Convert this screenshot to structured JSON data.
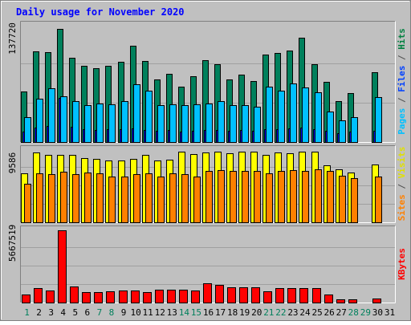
{
  "chart_data": {
    "type": "bar",
    "title": "Daily usage for November 2020",
    "days": [
      "1",
      "2",
      "3",
      "4",
      "5",
      "6",
      "7",
      "8",
      "9",
      "10",
      "11",
      "12",
      "13",
      "14",
      "15",
      "16",
      "17",
      "18",
      "19",
      "20",
      "21",
      "22",
      "23",
      "24",
      "25",
      "26",
      "27",
      "28",
      "29",
      "30",
      "31"
    ],
    "weekend_days": [
      "1",
      "7",
      "8",
      "14",
      "15",
      "21",
      "22",
      "28",
      "29"
    ],
    "panels": [
      {
        "id": "hits",
        "max_label": "137720",
        "max": 137720,
        "right_label": [
          {
            "text": "Pages",
            "color": "#00c0ff"
          },
          {
            "text": " / ",
            "color": "#505050"
          },
          {
            "text": "Files",
            "color": "#0040ff"
          },
          {
            "text": " / ",
            "color": "#505050"
          },
          {
            "text": "Hits",
            "color": "#008040"
          }
        ],
        "series": [
          {
            "name": "Hits",
            "color": "#00805c",
            "values": [
              60000,
              107000,
              106000,
              134000,
              100000,
              90000,
              87000,
              90000,
              95000,
              114000,
              96000,
              74000,
              81000,
              66000,
              78000,
              97000,
              92000,
              74000,
              80000,
              72000,
              104000,
              105000,
              108000,
              123000,
              92000,
              71000,
              48000,
              58000,
              0,
              83000,
              0
            ]
          },
          {
            "name": "Files",
            "color": "#0000ff",
            "values": [
              12000,
              17000,
              19000,
              52000,
              18000,
              15000,
              14000,
              15000,
              15000,
              16000,
              14000,
              13000,
              14000,
              12000,
              13000,
              14000,
              14000,
              13000,
              14000,
              13000,
              15000,
              15000,
              16000,
              17000,
              15000,
              13000,
              10000,
              12000,
              0,
              13000,
              0
            ]
          },
          {
            "name": "Pages",
            "color": "#00c0ff",
            "values": [
              29000,
              51000,
              64000,
              54000,
              48000,
              44000,
              46000,
              45000,
              48000,
              68000,
              61000,
              44000,
              45000,
              44000,
              45000,
              46000,
              48000,
              44000,
              44000,
              42000,
              66000,
              61000,
              69000,
              65000,
              59000,
              36000,
              26000,
              29000,
              0,
              53000,
              0
            ]
          }
        ]
      },
      {
        "id": "visits",
        "max_label": "9586",
        "max": 9586,
        "right_label": [
          {
            "text": "Sites",
            "color": "#ff8000"
          },
          {
            "text": " / ",
            "color": "#505050"
          },
          {
            "text": "Visits",
            "color": "#e0e000"
          }
        ],
        "series": [
          {
            "name": "Visits",
            "color": "#ffff00",
            "values": [
              6500,
              9300,
              8900,
              9000,
              8900,
              8500,
              8400,
              8200,
              8200,
              8400,
              8900,
              8200,
              8300,
              9400,
              9100,
              9300,
              9400,
              9200,
              9400,
              9400,
              9000,
              9300,
              9200,
              9400,
              9400,
              7600,
              7000,
              6600,
              0,
              7700,
              0
            ]
          },
          {
            "name": "Sites",
            "color": "#ff8000",
            "values": [
              5100,
              6500,
              6400,
              6700,
              6400,
              6600,
              6500,
              6100,
              6100,
              6400,
              6500,
              6100,
              6500,
              6400,
              6100,
              6800,
              6900,
              6800,
              6800,
              6800,
              6500,
              6800,
              6900,
              6800,
              7000,
              6800,
              6200,
              5900,
              0,
              6100,
              0
            ]
          }
        ]
      },
      {
        "id": "kbytes",
        "max_label": "5667519",
        "max": 5667519,
        "right_label": [
          {
            "text": "KBytes",
            "color": "#ff0000"
          }
        ],
        "series": [
          {
            "name": "KBytes",
            "color": "#ff0000",
            "values": [
              640000,
              1130000,
              920000,
              5667519,
              1250000,
              850000,
              830000,
              860000,
              960000,
              920000,
              830000,
              980000,
              1010000,
              1020000,
              960000,
              1540000,
              1380000,
              1180000,
              1190000,
              1190000,
              910000,
              1130000,
              1120000,
              1130000,
              1130000,
              640000,
              260000,
              280000,
              0,
              330000,
              0
            ]
          }
        ]
      }
    ]
  }
}
